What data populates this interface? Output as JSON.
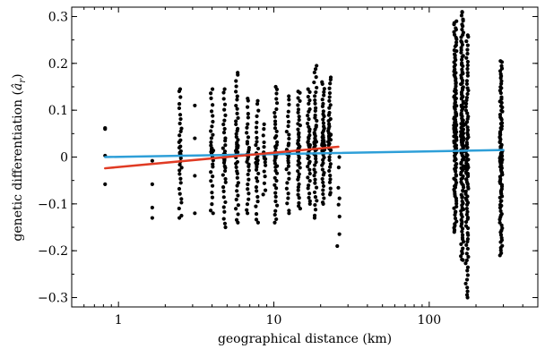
{
  "chart_data": {
    "type": "scatter",
    "title": "",
    "xlabel": "geographical distance (km)",
    "ylabel_main": "genetic differentiation (",
    "ylabel_symbol": "â",
    "ylabel_sub": "r",
    "ylabel_end": ")",
    "x_scale": "log",
    "xlim": [
      0.5,
      500
    ],
    "ylim": [
      -0.32,
      0.32
    ],
    "x_ticks": [
      {
        "value": 1,
        "label": "1"
      },
      {
        "value": 10,
        "label": "10"
      },
      {
        "value": 100,
        "label": "100"
      }
    ],
    "y_ticks": [
      {
        "value": -0.3,
        "label": "−0.3"
      },
      {
        "value": -0.2,
        "label": "−0.2"
      },
      {
        "value": -0.1,
        "label": "−0.1"
      },
      {
        "value": 0,
        "label": "0"
      },
      {
        "value": 0.1,
        "label": "0.1"
      },
      {
        "value": 0.2,
        "label": "0.2"
      },
      {
        "value": 0.3,
        "label": "0.3"
      }
    ],
    "grid": false,
    "legend": "none",
    "point_color": "#000000",
    "point_columns": [
      {
        "x": 0.82,
        "y": [
          0.062,
          0.06,
          0.003,
          -0.058
        ]
      },
      {
        "x": 1.65,
        "y": [
          -0.008,
          -0.058,
          -0.108,
          -0.13
        ]
      },
      {
        "x": 2.5,
        "ymin": -0.13,
        "ymax": 0.145,
        "n": 34
      },
      {
        "x": 3.1,
        "y": [
          -0.12,
          -0.04,
          0.04,
          0.11
        ]
      },
      {
        "x": 4.0,
        "ymin": -0.12,
        "ymax": 0.145,
        "n": 30
      },
      {
        "x": 4.8,
        "ymin": -0.15,
        "ymax": 0.145,
        "n": 36
      },
      {
        "x": 5.8,
        "ymin": -0.14,
        "ymax": 0.18,
        "n": 44
      },
      {
        "x": 6.8,
        "ymin": -0.12,
        "ymax": 0.125,
        "n": 30
      },
      {
        "x": 7.8,
        "ymin": -0.14,
        "ymax": 0.12,
        "n": 30
      },
      {
        "x": 8.7,
        "ymin": -0.08,
        "ymax": 0.07,
        "n": 14
      },
      {
        "x": 10.3,
        "ymin": -0.14,
        "ymax": 0.15,
        "n": 42
      },
      {
        "x": 12.3,
        "ymin": -0.12,
        "ymax": 0.13,
        "n": 30
      },
      {
        "x": 14.5,
        "ymin": -0.11,
        "ymax": 0.14,
        "n": 44
      },
      {
        "x": 16.8,
        "ymin": -0.1,
        "ymax": 0.145,
        "n": 40
      },
      {
        "x": 18.5,
        "ymin": -0.13,
        "ymax": 0.195,
        "n": 48
      },
      {
        "x": 20.8,
        "ymin": -0.1,
        "ymax": 0.16,
        "n": 46
      },
      {
        "x": 22.8,
        "ymin": -0.08,
        "ymax": 0.17,
        "n": 40
      },
      {
        "x": 26.0,
        "ymin": -0.19,
        "ymax": 0.0,
        "n": 6
      },
      {
        "x": 147,
        "ymin": -0.16,
        "ymax": 0.29,
        "n": 130
      },
      {
        "x": 163,
        "ymin": -0.22,
        "ymax": 0.31,
        "n": 140
      },
      {
        "x": 175,
        "ymin": -0.3,
        "ymax": 0.26,
        "n": 100
      },
      {
        "x": 290,
        "ymin": -0.21,
        "ymax": 0.205,
        "n": 110
      }
    ],
    "series": [
      {
        "x": [
          0.82,
          300
        ],
        "y": [
          0.0,
          0.015
        ],
        "color": "#2e9fd8"
      },
      {
        "x": [
          0.82,
          26
        ],
        "y": [
          -0.024,
          0.022
        ],
        "color": "#e03b24"
      }
    ]
  }
}
